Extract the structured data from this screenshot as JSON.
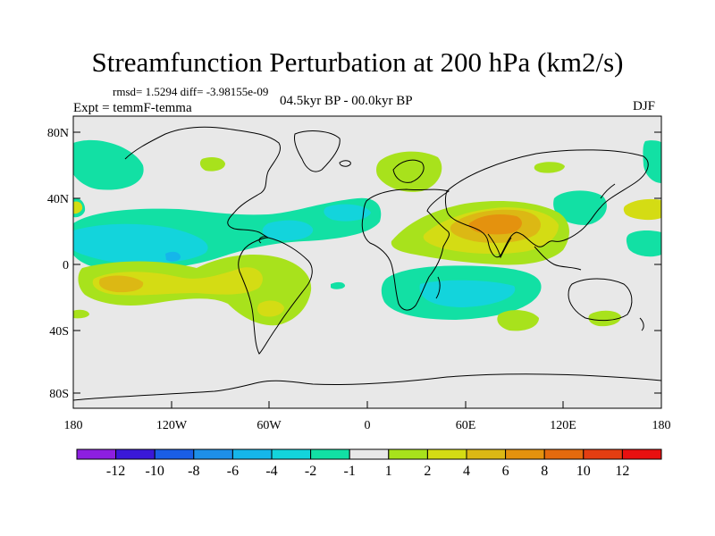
{
  "title": "Streamfunction Perturbation at 200 hPa (km2/s)",
  "stats": "rmsd= 1.5294 diff= -3.98155e-09",
  "experiment": "Expt = temmF-temma",
  "period": "04.5kyr BP - 00.0kyr BP",
  "season": "DJF",
  "axes": {
    "lat_ticks": [
      "80N",
      "40N",
      "0",
      "40S",
      "80S"
    ],
    "lon_ticks": [
      "180",
      "120W",
      "60W",
      "0",
      "60E",
      "120E",
      "180"
    ]
  },
  "colorbar": {
    "labels": [
      "-12",
      "-10",
      "-8",
      "-6",
      "-4",
      "-2",
      "-1",
      "1",
      "2",
      "4",
      "6",
      "8",
      "10",
      "12"
    ],
    "colors": [
      "#8d1fe0",
      "#3a18d8",
      "#1a5ee6",
      "#1e8fe8",
      "#15b6ea",
      "#13d4dc",
      "#12e0a4",
      "#e8e8e8",
      "#a8e21c",
      "#d4dc14",
      "#dcb814",
      "#e4920e",
      "#e46a0e",
      "#e43e12",
      "#e81010"
    ]
  },
  "colors": {
    "background": "#e8e8e8",
    "neg_1_2": "#12e0a4",
    "neg_2_4": "#13d4dc",
    "neg_4_6": "#15b6ea",
    "pos_1_2": "#a8e21c",
    "pos_2_4": "#d4dc14",
    "pos_4_6": "#dcb814",
    "pos_6_8": "#e4920e"
  }
}
